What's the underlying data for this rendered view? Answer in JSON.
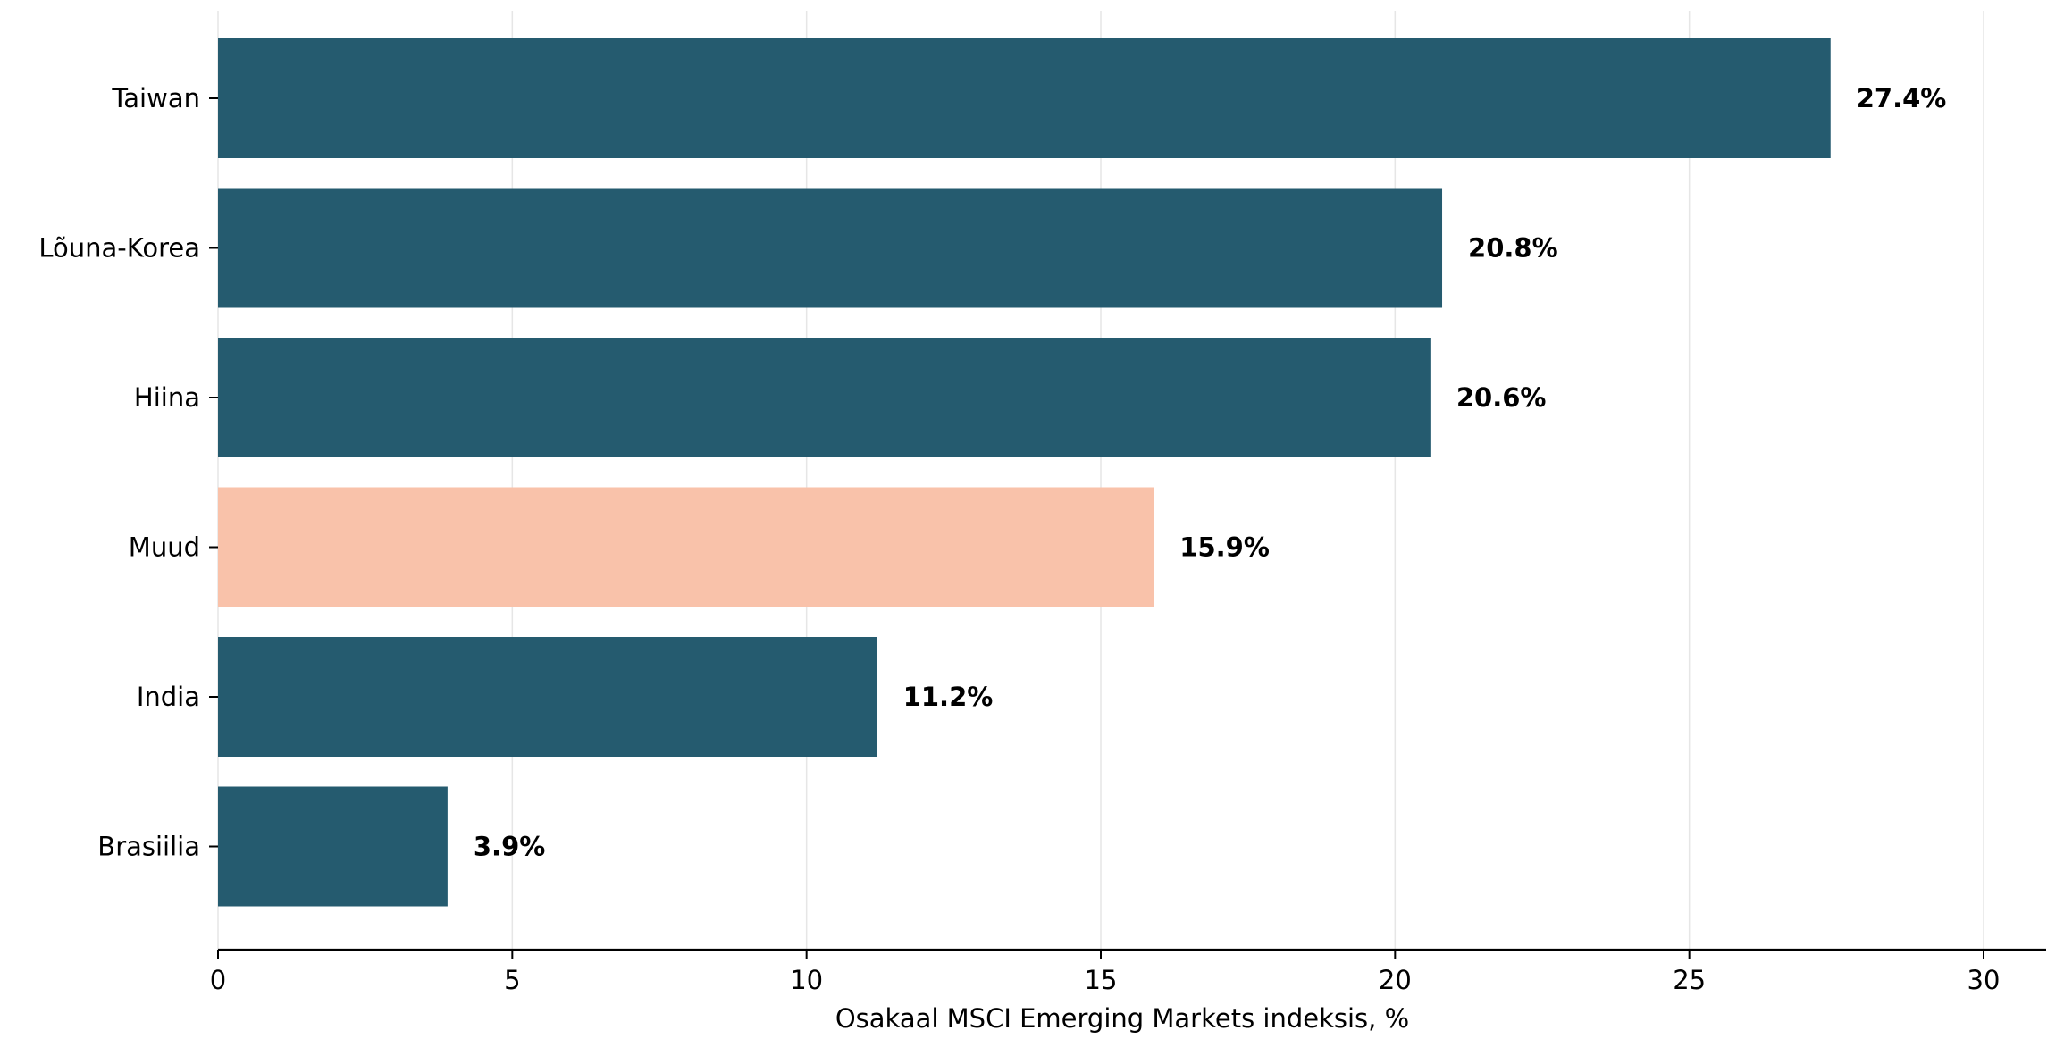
{
  "chart_data": {
    "type": "bar",
    "orientation": "horizontal",
    "categories": [
      "Taiwan",
      "Lõuna-Korea",
      "Hiina",
      "Muud",
      "India",
      "Brasiilia"
    ],
    "values": [
      27.4,
      20.8,
      20.6,
      15.9,
      11.2,
      3.9
    ],
    "value_labels": [
      "27.4%",
      "20.8%",
      "20.6%",
      "15.9%",
      "11.2%",
      "3.9%"
    ],
    "highlight_category": "Muud",
    "title": "",
    "xlabel": "Osakaal MSCI Emerging Markets indeksis, %",
    "ylabel": "",
    "xlim": [
      0,
      31
    ],
    "xticks": [
      0,
      5,
      10,
      15,
      20,
      25,
      30
    ],
    "grid": "vertical",
    "colors": {
      "bar": "#255b6f",
      "highlight": "#f9c2aa",
      "grid": "#e6e6e6",
      "axis": "#000000"
    }
  }
}
